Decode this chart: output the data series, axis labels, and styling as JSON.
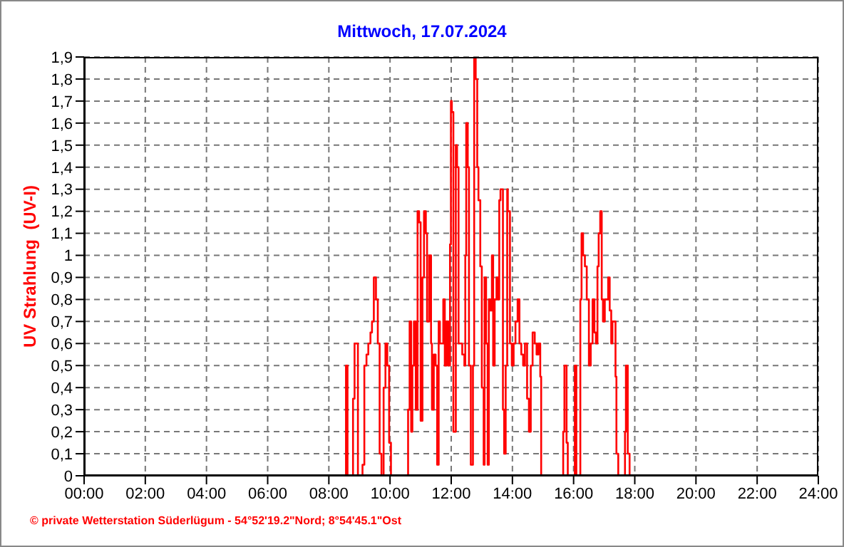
{
  "chart_data": {
    "type": "step",
    "title": "Mittwoch, 17.07.2024",
    "ylabel": "UV Strahlung  (UV-I)",
    "annotations": [
      "© private Wetterstation Süderlügum - 54°52'19.2\"Nord; 8°54'45.1\"Ost"
    ],
    "x": [
      0,
      8.56,
      8.61,
      8.79,
      8.84,
      8.95,
      9.1,
      9.16,
      9.23,
      9.29,
      9.36,
      9.41,
      9.47,
      9.54,
      9.6,
      9.66,
      9.72,
      9.79,
      9.85,
      9.91,
      9.97,
      10.03,
      10.59,
      10.64,
      10.69,
      10.73,
      10.78,
      10.84,
      10.9,
      10.95,
      11.0,
      11.06,
      11.11,
      11.17,
      11.21,
      11.28,
      11.34,
      11.37,
      11.43,
      11.49,
      11.54,
      11.59,
      11.63,
      11.68,
      11.74,
      11.79,
      11.84,
      11.9,
      11.96,
      11.99,
      12.02,
      12.07,
      12.15,
      12.19,
      12.24,
      12.3,
      12.36,
      12.43,
      12.46,
      12.49,
      12.54,
      12.58,
      12.64,
      12.71,
      12.75,
      12.8,
      12.85,
      12.89,
      12.95,
      13.0,
      13.06,
      13.09,
      13.14,
      13.19,
      13.23,
      13.28,
      13.33,
      13.37,
      13.42,
      13.48,
      13.53,
      13.57,
      13.61,
      13.69,
      13.73,
      13.78,
      13.83,
      13.85,
      13.92,
      13.98,
      14.04,
      14.1,
      14.17,
      14.23,
      14.29,
      14.35,
      14.41,
      14.48,
      14.54,
      14.6,
      14.66,
      14.73,
      14.79,
      14.85,
      14.91,
      14.94,
      15.66,
      15.7,
      15.77,
      15.81,
      16.04,
      16.09,
      16.22,
      16.26,
      16.31,
      16.37,
      16.43,
      16.5,
      16.56,
      16.62,
      16.68,
      16.73,
      16.78,
      16.82,
      16.87,
      16.92,
      16.96,
      17.02,
      17.09,
      17.13,
      17.18,
      17.23,
      17.27,
      17.32,
      17.37,
      17.4,
      17.46,
      17.68,
      17.71,
      17.77,
      17.83,
      24
    ],
    "series": [
      {
        "color": "#ff0000",
        "values": [
          0,
          0.5,
          0,
          0.35,
          0.6,
          0,
          0.05,
          0.5,
          0.55,
          0.6,
          0.65,
          0.7,
          0.9,
          0.8,
          0.6,
          0.1,
          0,
          0.4,
          0.6,
          0.5,
          0.15,
          0,
          0.3,
          0.7,
          0.2,
          0.5,
          0.7,
          0.3,
          1.2,
          1.15,
          0.25,
          0.9,
          1.2,
          1.1,
          0.7,
          1.0,
          0.6,
          0.3,
          0.55,
          0.5,
          0.05,
          0.7,
          0.6,
          0.6,
          0.8,
          0.5,
          0.7,
          0.5,
          1.05,
          1.7,
          1.65,
          0.2,
          1.5,
          1.4,
          0.6,
          0.6,
          0.55,
          0.5,
          1.0,
          1.6,
          1.4,
          0.5,
          0.05,
          0.5,
          1.9,
          1.8,
          1.4,
          1.25,
          0.95,
          0.4,
          0.05,
          0.9,
          0.6,
          0.05,
          0.8,
          0.75,
          1.0,
          0.5,
          0.8,
          0.9,
          0.8,
          1.25,
          1.3,
          0.3,
          0.1,
          0.5,
          1.3,
          1.2,
          0.6,
          0.5,
          0.6,
          0.7,
          0.8,
          0.6,
          0.55,
          0.5,
          0.6,
          0.35,
          0.2,
          0.5,
          0.65,
          0.6,
          0.55,
          0.6,
          0.45,
          0,
          0.2,
          0.5,
          0.15,
          0,
          0.5,
          0,
          0.8,
          1.1,
          1.0,
          0.95,
          0.8,
          0.5,
          0.6,
          0.8,
          0.65,
          0.6,
          0.95,
          1.1,
          1.2,
          0.8,
          0.7,
          0.8,
          0.8,
          0.9,
          0.75,
          0.6,
          0.7,
          0.7,
          0.45,
          0.1,
          0,
          0.2,
          0.5,
          0.1,
          0,
          0
        ]
      }
    ],
    "xlim": [
      0,
      24
    ],
    "xticks": [
      {
        "value": 0,
        "label": "00:00"
      },
      {
        "value": 2,
        "label": "02:00"
      },
      {
        "value": 4,
        "label": "04:00"
      },
      {
        "value": 6,
        "label": "06:00"
      },
      {
        "value": 8,
        "label": "08:00"
      },
      {
        "value": 10,
        "label": "10:00"
      },
      {
        "value": 12,
        "label": "12:00"
      },
      {
        "value": 14,
        "label": "14:00"
      },
      {
        "value": 16,
        "label": "16:00"
      },
      {
        "value": 18,
        "label": "18:00"
      },
      {
        "value": 20,
        "label": "20:00"
      },
      {
        "value": 22,
        "label": "22:00"
      },
      {
        "value": 24,
        "label": "24:00"
      }
    ],
    "ylim": [
      0,
      1.9
    ],
    "yticks": [
      0,
      {
        "value": 0.1,
        "label": "0,1"
      },
      {
        "value": 0.2,
        "label": "0,2"
      },
      {
        "value": 0.3,
        "label": "0,3"
      },
      {
        "value": 0.4,
        "label": "0,4"
      },
      {
        "value": 0.5,
        "label": "0,5"
      },
      {
        "value": 0.6,
        "label": "0,6"
      },
      {
        "value": 0.7,
        "label": "0,7"
      },
      {
        "value": 0.8,
        "label": "0,8"
      },
      {
        "value": 0.9,
        "label": "0,9"
      },
      1,
      {
        "value": 1.1,
        "label": "1,1"
      },
      {
        "value": 1.2,
        "label": "1,2"
      },
      {
        "value": 1.3,
        "label": "1,3"
      },
      {
        "value": 1.4,
        "label": "1,4"
      },
      {
        "value": 1.5,
        "label": "1,5"
      },
      {
        "value": 1.6,
        "label": "1,6"
      },
      {
        "value": 1.7,
        "label": "1,7"
      },
      {
        "value": 1.8,
        "label": "1,8"
      },
      {
        "value": 1.9,
        "label": "1,9"
      }
    ],
    "grid": true,
    "legend": false,
    "marker": "none",
    "line_style": "solid"
  }
}
